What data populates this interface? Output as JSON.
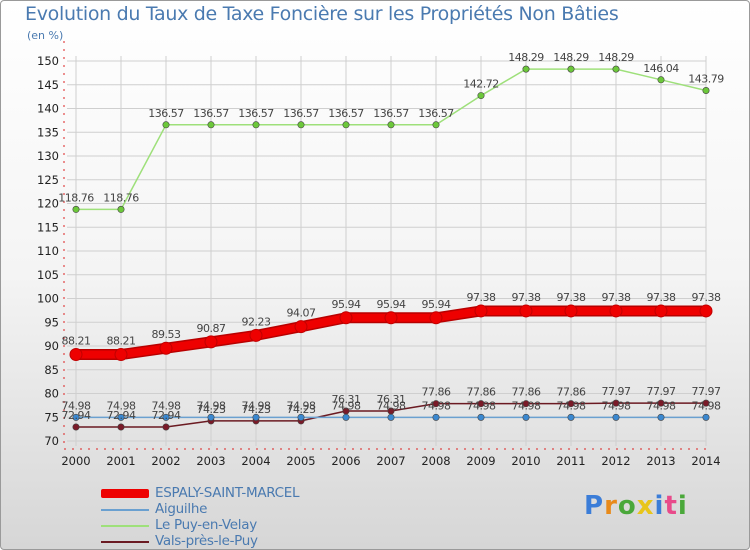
{
  "title": "Evolution du Taux de Taxe Foncière sur les Propriétés Non Bâties",
  "unit_label": "(en %)",
  "logo": {
    "text": "Proxiti",
    "colors": [
      "#3b7dd8",
      "#e88a1a",
      "#4aa83a",
      "#e8c51a",
      "#3b7dd8",
      "#e84a8a",
      "#4aa83a"
    ]
  },
  "chart_data": {
    "type": "line",
    "title": "Evolution du Taux de Taxe Foncière sur les Propriétés Non Bâties",
    "ylabel": "(en %)",
    "xlabel": "",
    "ylim": [
      70,
      150
    ],
    "ytick_step": 5,
    "grid": true,
    "legend_position": "bottom-left",
    "categories": [
      "2000",
      "2001",
      "2002",
      "2003",
      "2004",
      "2005",
      "2006",
      "2007",
      "2008",
      "2009",
      "2010",
      "2011",
      "2012",
      "2013",
      "2014"
    ],
    "yticks": [
      "70",
      "75",
      "80",
      "85",
      "90",
      "95",
      "100",
      "105",
      "110",
      "115",
      "120",
      "125",
      "130",
      "135",
      "140",
      "145",
      "150"
    ],
    "series": [
      {
        "name": "Vals-près-le-Puy",
        "color": "#6b1a22",
        "marker": "#7a1a28",
        "values": [
          72.94,
          72.94,
          72.94,
          74.23,
          74.23,
          74.23,
          76.31,
          76.31,
          77.86,
          77.86,
          77.86,
          77.86,
          77.97,
          77.97,
          77.97
        ],
        "labels": [
          "72.94",
          "72.94",
          "72.94",
          "74.23",
          "74.23",
          "74.23",
          "76.31",
          "76.31",
          "77.86",
          "77.86",
          "77.86",
          "77.86",
          "77.97",
          "77.97",
          "77.97"
        ]
      },
      {
        "name": "Aiguilhe",
        "color": "#6aa0d0",
        "marker": "#3b88d0",
        "values": [
          74.98,
          74.98,
          74.98,
          74.98,
          74.98,
          74.98,
          74.98,
          74.98,
          74.98,
          74.98,
          74.98,
          74.98,
          74.98,
          74.98,
          74.98
        ],
        "labels": [
          "74.98",
          "74.98",
          "74.98",
          "74.98",
          "74.98",
          "74.98",
          "74.98",
          "74.98",
          "74.98",
          "74.98",
          "74.98",
          "74.98",
          "74.98",
          "74.98",
          "74.98"
        ]
      },
      {
        "name": "Le Puy-en-Velay",
        "color": "#9ee07a",
        "marker": "#6cc83a",
        "values": [
          118.76,
          118.76,
          136.57,
          136.57,
          136.57,
          136.57,
          136.57,
          136.57,
          136.57,
          142.72,
          148.29,
          148.29,
          148.29,
          146.04,
          143.79
        ],
        "labels": [
          "118.76",
          "118.76",
          "136.57",
          "136.57",
          "136.57",
          "136.57",
          "136.57",
          "136.57",
          "136.57",
          "142.72",
          "148.29",
          "148.29",
          "148.29",
          "146.04",
          "143.79"
        ]
      },
      {
        "name": "ESPALY-SAINT-MARCEL",
        "color": "#ee0000",
        "marker": "#ee0000",
        "values": [
          88.21,
          88.21,
          89.53,
          90.87,
          92.23,
          94.07,
          95.94,
          95.94,
          95.94,
          97.38,
          97.38,
          97.38,
          97.38,
          97.38,
          97.38
        ],
        "labels": [
          "88.21",
          "88.21",
          "89.53",
          "90.87",
          "92.23",
          "94.07",
          "95.94",
          "95.94",
          "95.94",
          "97.38",
          "97.38",
          "97.38",
          "97.38",
          "97.38",
          "97.38"
        ]
      }
    ],
    "legend_order": [
      "ESPALY-SAINT-MARCEL",
      "Aiguilhe",
      "Le Puy-en-Velay",
      "Vals-près-le-Puy"
    ]
  }
}
